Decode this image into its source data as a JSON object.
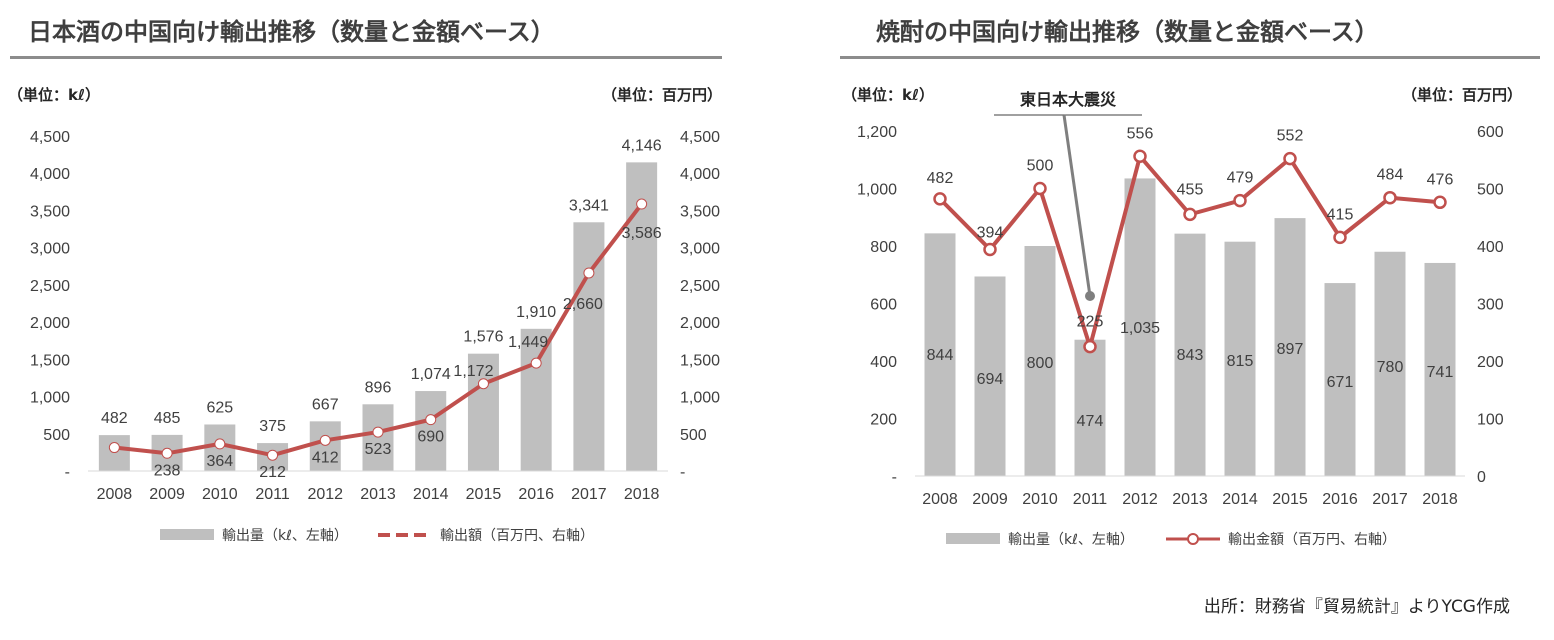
{
  "colors": {
    "bar": "#bfbfbf",
    "line": "#c0504d",
    "rule": "#8c8c8c",
    "text": "#404040"
  },
  "chart_data": [
    {
      "type": "bar+line",
      "title": "日本酒の中国向け輸出推移（数量と金額ベース）",
      "left_unit": "（単位：kℓ）",
      "right_unit": "（単位：百万円）",
      "categories": [
        "2008",
        "2009",
        "2010",
        "2011",
        "2012",
        "2013",
        "2014",
        "2015",
        "2016",
        "2017",
        "2018"
      ],
      "y_left_ticks": [
        "-",
        "500",
        "1,000",
        "1,500",
        "2,000",
        "2,500",
        "3,000",
        "3,500",
        "4,000",
        "4,500"
      ],
      "y_right_ticks": [
        "-",
        "500",
        "1,000",
        "1,500",
        "2,000",
        "2,500",
        "3,000",
        "3,500",
        "4,000",
        "4,500"
      ],
      "ylim_left": [
        0,
        4500
      ],
      "ylim_right": [
        0,
        4500
      ],
      "series": [
        {
          "name": "輸出量（kℓ、左軸）",
          "type": "bar",
          "axis": "left",
          "values": [
            482,
            485,
            625,
            375,
            667,
            896,
            1074,
            1576,
            1910,
            3341,
            4146
          ],
          "labels": [
            "482",
            "485",
            "625",
            "375",
            "667",
            "896",
            "1,074",
            "1,576",
            "1,910",
            "3,341",
            "4,146"
          ]
        },
        {
          "name": "輸出額（百万円、右軸）",
          "type": "line",
          "axis": "right",
          "marker": "filled-white",
          "values": [
            315,
            238,
            364,
            212,
            412,
            523,
            690,
            1172,
            1449,
            2660,
            3586
          ],
          "labels": [
            "",
            "238",
            "364",
            "212",
            "412",
            "523",
            "690",
            "1,172",
            "1,449",
            "2,660",
            "3,586"
          ]
        }
      ],
      "legend": "bottom",
      "grid": false
    },
    {
      "type": "bar+line",
      "title": "焼酎の中国向け輸出推移（数量と金額ベース）",
      "left_unit": "（単位：kℓ）",
      "right_unit": "（単位：百万円）",
      "categories": [
        "2008",
        "2009",
        "2010",
        "2011",
        "2012",
        "2013",
        "2014",
        "2015",
        "2016",
        "2017",
        "2018"
      ],
      "y_left_ticks": [
        "-",
        "200",
        "400",
        "600",
        "800",
        "1,000",
        "1,200"
      ],
      "y_right_ticks": [
        "0",
        "100",
        "200",
        "300",
        "400",
        "500",
        "600"
      ],
      "ylim_left": [
        0,
        1200
      ],
      "ylim_right": [
        0,
        600
      ],
      "series": [
        {
          "name": "輸出量（kℓ、左軸）",
          "type": "bar",
          "axis": "left",
          "values": [
            844,
            694,
            800,
            474,
            1035,
            843,
            815,
            897,
            671,
            780,
            741
          ],
          "labels": [
            "844",
            "694",
            "800",
            "474",
            "1,035",
            "843",
            "815",
            "897",
            "671",
            "780",
            "741"
          ]
        },
        {
          "name": "輸出金額（百万円、右軸）",
          "type": "line",
          "axis": "right",
          "marker": "hollow",
          "values": [
            482,
            394,
            500,
            225,
            556,
            455,
            479,
            552,
            415,
            484,
            476
          ],
          "labels": [
            "482",
            "394",
            "500",
            "225",
            "556",
            "455",
            "479",
            "552",
            "415",
            "484",
            "476"
          ]
        }
      ],
      "annotation": {
        "text": "東日本大震災",
        "category": "2011"
      },
      "legend": "bottom",
      "grid": false
    }
  ],
  "source": "出所：財務省『貿易統計』よりYCG作成"
}
